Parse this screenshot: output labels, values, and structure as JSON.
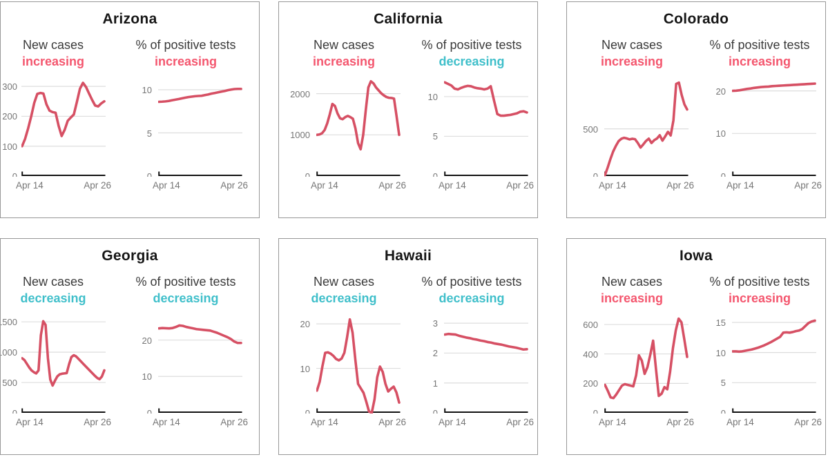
{
  "colors": {
    "increasing": "#f4566e",
    "decreasing": "#3fbfca",
    "line": "#d65064",
    "grid": "#dddddd",
    "axis": "#111111",
    "tick_label": "#757575",
    "metric_label": "#3a3a3a",
    "title": "#161616",
    "panel_border": "#979797"
  },
  "x_axis": {
    "start": "Apr 14",
    "end": "Apr 26"
  },
  "chart_data": [
    {
      "state": "Arizona",
      "charts": [
        {
          "type": "line",
          "metric": "New cases",
          "trend": "increasing",
          "x_start": "Apr 14",
          "x_end": "Apr 26",
          "y_ticks": [
            0,
            100,
            200,
            300
          ],
          "y_max": 335,
          "values": [
            100,
            125,
            160,
            200,
            245,
            275,
            278,
            276,
            240,
            219,
            214,
            212,
            168,
            134,
            155,
            185,
            196,
            206,
            248,
            292,
            312,
            298,
            276,
            255,
            236,
            233,
            243,
            250
          ]
        },
        {
          "type": "line",
          "metric": "% of positive tests",
          "trend": "increasing",
          "x_start": "Apr 14",
          "x_end": "Apr 26",
          "y_ticks": [
            0,
            5,
            10
          ],
          "y_max": 11.6,
          "values": [
            8.6,
            8.62,
            8.65,
            8.7,
            8.78,
            8.85,
            8.92,
            9.0,
            9.08,
            9.15,
            9.2,
            9.25,
            9.28,
            9.3,
            9.38,
            9.45,
            9.55,
            9.62,
            9.7,
            9.78,
            9.85,
            9.95,
            10.02,
            10.08,
            10.1,
            10.1
          ]
        }
      ]
    },
    {
      "state": "California",
      "charts": [
        {
          "type": "line",
          "metric": "New cases",
          "trend": "increasing",
          "x_start": "Apr 14",
          "x_end": "Apr 26",
          "y_ticks": [
            0,
            1000,
            2000
          ],
          "y_max": 2430,
          "values": [
            1000,
            1010,
            1040,
            1120,
            1280,
            1500,
            1750,
            1700,
            1520,
            1400,
            1380,
            1430,
            1460,
            1430,
            1390,
            1150,
            800,
            650,
            1000,
            1600,
            2150,
            2300,
            2250,
            2150,
            2080,
            2010,
            1960,
            1920,
            1900,
            1895,
            1880,
            1450,
            1000
          ]
        },
        {
          "type": "line",
          "metric": "% of positive tests",
          "trend": "decreasing",
          "x_start": "Apr 14",
          "x_end": "Apr 26",
          "y_ticks": [
            0,
            5,
            10
          ],
          "y_max": 12.6,
          "values": [
            11.8,
            11.6,
            11.4,
            11.0,
            10.9,
            11.1,
            11.25,
            11.35,
            11.3,
            11.15,
            11.05,
            11.0,
            10.9,
            11.0,
            11.3,
            9.5,
            7.8,
            7.6,
            7.6,
            7.65,
            7.7,
            7.8,
            7.9,
            8.1,
            8.15,
            8.0
          ]
        }
      ]
    },
    {
      "state": "Colorado",
      "charts": [
        {
          "type": "line",
          "metric": "New cases",
          "trend": "increasing",
          "x_start": "Apr 14",
          "x_end": "Apr 26",
          "y_ticks": [
            0,
            500
          ],
          "y_max": 1060,
          "values": [
            10,
            90,
            180,
            260,
            320,
            370,
            395,
            405,
            398,
            388,
            395,
            390,
            350,
            302,
            335,
            372,
            396,
            350,
            380,
            398,
            432,
            375,
            420,
            468,
            430,
            590,
            975,
            990,
            860,
            760,
            705
          ]
        },
        {
          "type": "line",
          "metric": "% of positive tests",
          "trend": "increasing",
          "x_start": "Apr 14",
          "x_end": "Apr 26",
          "y_ticks": [
            0,
            10,
            20
          ],
          "y_max": 23.5,
          "values": [
            20.0,
            20.05,
            20.15,
            20.3,
            20.45,
            20.55,
            20.7,
            20.8,
            20.9,
            20.95,
            21.0,
            21.1,
            21.15,
            21.2,
            21.25,
            21.3,
            21.35,
            21.4,
            21.45,
            21.5,
            21.55,
            21.6,
            21.65,
            21.7
          ]
        }
      ]
    },
    {
      "state": "Georgia",
      "charts": [
        {
          "type": "line",
          "metric": "New cases",
          "trend": "decreasing",
          "x_start": "Apr 14",
          "x_end": "Apr 26",
          "y_ticks": [
            0,
            500,
            1000,
            1500
          ],
          "y_max": 1650,
          "values": [
            900,
            870,
            810,
            750,
            700,
            670,
            650,
            700,
            1280,
            1510,
            1450,
            900,
            550,
            450,
            530,
            600,
            635,
            645,
            650,
            655,
            800,
            920,
            950,
            930,
            890,
            850,
            810,
            770,
            730,
            690,
            650,
            610,
            575,
            555,
            600,
            700
          ]
        },
        {
          "type": "line",
          "metric": "% of positive tests",
          "trend": "decreasing",
          "x_start": "Apr 14",
          "x_end": "Apr 26",
          "y_ticks": [
            0,
            10,
            20
          ],
          "y_max": 27.5,
          "values": [
            23.2,
            23.3,
            23.25,
            23.2,
            23.3,
            23.6,
            24.0,
            23.9,
            23.6,
            23.4,
            23.2,
            23.0,
            22.9,
            22.8,
            22.7,
            22.6,
            22.3,
            22.0,
            21.6,
            21.2,
            20.8,
            20.3,
            19.6,
            19.2,
            19.2
          ]
        }
      ]
    },
    {
      "state": "Hawaii",
      "charts": [
        {
          "type": "line",
          "metric": "New cases",
          "trend": "decreasing",
          "x_start": "Apr 14",
          "x_end": "Apr 26",
          "y_ticks": [
            0,
            10,
            20
          ],
          "y_max": 22.5,
          "values": [
            5,
            7,
            10.5,
            13.5,
            13.6,
            13.3,
            12.8,
            12.1,
            11.8,
            12.2,
            13.5,
            17,
            21,
            18,
            12,
            6.5,
            5.5,
            4.5,
            2.5,
            0.3,
            0,
            3,
            8,
            10.4,
            9.2,
            6.5,
            4.8,
            5.4,
            5.9,
            4.6,
            2.3
          ]
        },
        {
          "type": "line",
          "metric": "% of positive tests",
          "trend": "decreasing",
          "x_start": "Apr 14",
          "x_end": "Apr 26",
          "y_ticks": [
            0,
            1,
            2,
            3
          ],
          "y_max": 3.35,
          "values": [
            2.62,
            2.64,
            2.63,
            2.62,
            2.58,
            2.55,
            2.52,
            2.5,
            2.47,
            2.45,
            2.42,
            2.4,
            2.37,
            2.35,
            2.32,
            2.3,
            2.28,
            2.25,
            2.22,
            2.2,
            2.18,
            2.15,
            2.12,
            2.13
          ]
        }
      ]
    },
    {
      "state": "Iowa",
      "charts": [
        {
          "type": "line",
          "metric": "New cases",
          "trend": "increasing",
          "x_start": "Apr 14",
          "x_end": "Apr 26",
          "y_ticks": [
            0,
            200,
            400,
            600
          ],
          "y_max": 680,
          "values": [
            190,
            150,
            105,
            100,
            125,
            155,
            185,
            195,
            190,
            185,
            180,
            255,
            390,
            355,
            265,
            310,
            395,
            490,
            300,
            115,
            130,
            175,
            160,
            280,
            440,
            560,
            640,
            615,
            500,
            380
          ]
        },
        {
          "type": "line",
          "metric": "% of positive tests",
          "trend": "increasing",
          "x_start": "Apr 14",
          "x_end": "Apr 26",
          "y_ticks": [
            0,
            5,
            10,
            15
          ],
          "y_max": 16.6,
          "values": [
            10.2,
            10.2,
            10.15,
            10.2,
            10.3,
            10.4,
            10.5,
            10.65,
            10.8,
            11.0,
            11.2,
            11.45,
            11.7,
            12.0,
            12.3,
            12.6,
            13.3,
            13.35,
            13.3,
            13.4,
            13.55,
            13.65,
            13.9,
            14.4,
            14.9,
            15.15,
            15.3
          ]
        }
      ]
    }
  ]
}
